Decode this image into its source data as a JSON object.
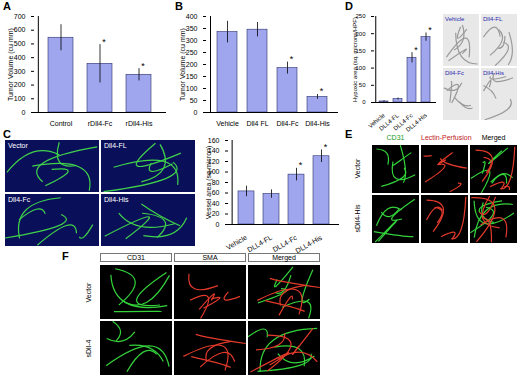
{
  "chart_data": [
    {
      "type": "bar",
      "title": "A",
      "y_label": "Tumor Volume (cu mm)",
      "categories": [
        "Control",
        "rDll4-Fc",
        "rDll4-His"
      ],
      "values": [
        545,
        355,
        275
      ],
      "errors": [
        95,
        140,
        45
      ],
      "significance": [
        null,
        "*",
        "*"
      ],
      "color": "#9fa6ee",
      "ylim": [
        0,
        700
      ],
      "yticks": [
        0,
        100,
        200,
        300,
        400,
        500,
        600,
        700
      ],
      "grid": false
    },
    {
      "type": "bar",
      "title": "B",
      "y_label": "Tumor Volume (cu mm)",
      "categories": [
        "Vehicle",
        "Dll4 FL",
        "Dll4-Fc",
        "Dll4-His"
      ],
      "values": [
        335,
        345,
        185,
        65
      ],
      "errors": [
        45,
        30,
        25,
        10
      ],
      "significance": [
        null,
        null,
        "*",
        "*"
      ],
      "color": "#9fa6ee",
      "ylim": [
        0,
        400
      ],
      "yticks": [
        0,
        50,
        100,
        150,
        200,
        250,
        300,
        350,
        400
      ],
      "grid": false
    },
    {
      "type": "bar",
      "title": "C",
      "y_label": "Vessel area (sq micron)",
      "categories": [
        "Vehicle",
        "DLL4-FL",
        "DLL4-Fc",
        "DLL4-His"
      ],
      "values": [
        63,
        58,
        95,
        130
      ],
      "errors": [
        10,
        8,
        12,
        12
      ],
      "significance": [
        null,
        null,
        "*",
        "*"
      ],
      "color": "#9fa6ee",
      "ylim": [
        0,
        160
      ],
      "yticks": [
        0,
        20,
        40,
        60,
        80,
        100,
        120,
        140,
        160
      ],
      "grid": false
    },
    {
      "type": "bar",
      "title": "D",
      "y_label": "Hypoxic area (sq. microns/HPF)",
      "categories": [
        "Vehicle",
        "DLL4-FL",
        "DLL4-Fc",
        "DLL4-His"
      ],
      "values": [
        3,
        10,
        130,
        190
      ],
      "errors": [
        2,
        3,
        15,
        12
      ],
      "significance": [
        null,
        null,
        "*",
        "*"
      ],
      "color": "#9fa6ee",
      "ylim": [
        0,
        250
      ],
      "yticks": [
        0,
        50,
        100,
        150,
        200,
        250
      ],
      "grid": false
    }
  ],
  "image_panels": [
    {
      "letter": "C",
      "labels": [
        "Vector",
        "Dll4-FL",
        "Dll4-Fc",
        "Dll4-His"
      ]
    },
    {
      "letter": "D",
      "labels": [
        "Vehicle",
        "Dll4-FL",
        "Dll4-Fc",
        "Dll4-His"
      ]
    },
    {
      "letter": "E",
      "columns": [
        "CD31",
        "Lectin-Perfusion",
        "Merged"
      ],
      "rows": [
        "Vector",
        "sDll4-His"
      ]
    },
    {
      "letter": "F",
      "columns": [
        "CD31",
        "SMA",
        "Merged"
      ],
      "rows": [
        "Vector",
        "sDll-4"
      ]
    }
  ]
}
